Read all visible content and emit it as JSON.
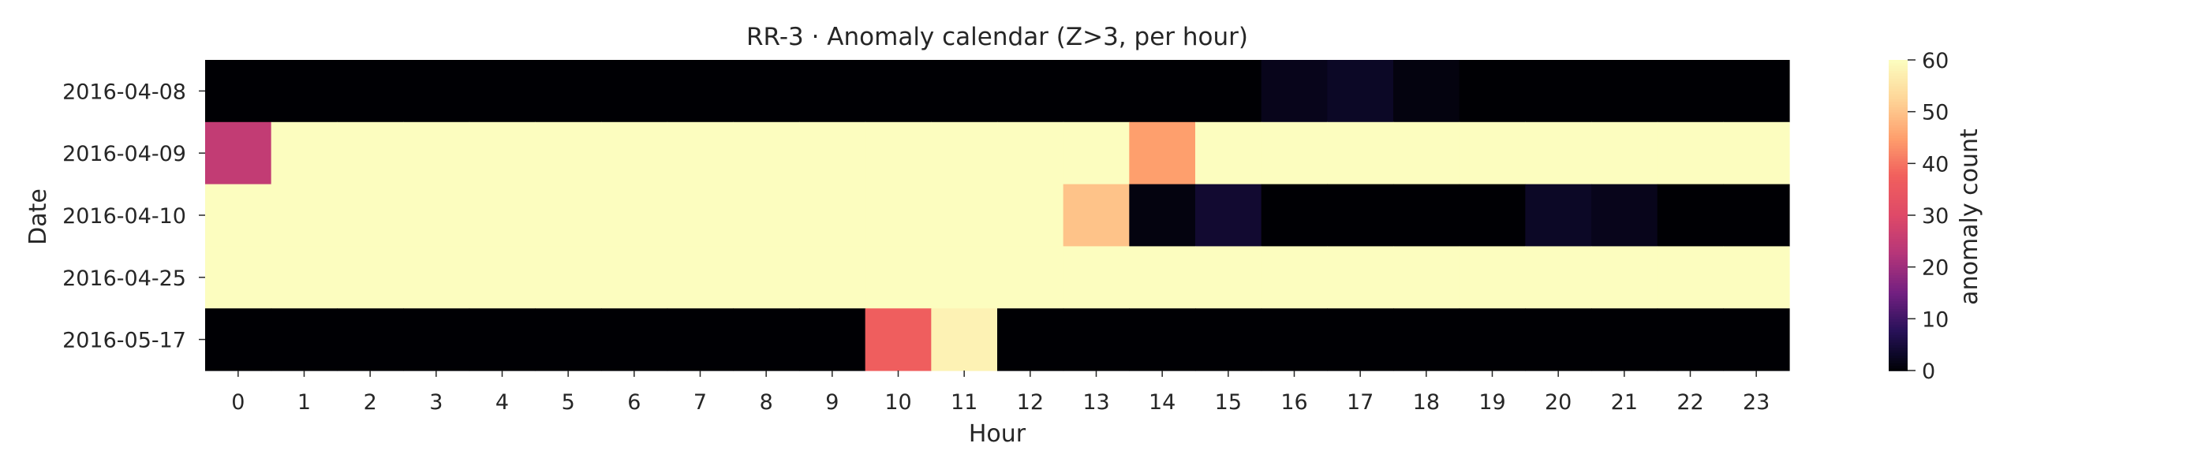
{
  "chart_data": {
    "type": "heatmap",
    "title": "RR-3 · Anomaly calendar (Z>3, per hour)",
    "xlabel": "Hour",
    "ylabel": "Date",
    "x_categories": [
      "0",
      "1",
      "2",
      "3",
      "4",
      "5",
      "6",
      "7",
      "8",
      "9",
      "10",
      "11",
      "12",
      "13",
      "14",
      "15",
      "16",
      "17",
      "18",
      "19",
      "20",
      "21",
      "22",
      "23"
    ],
    "y_categories": [
      "2016-04-08",
      "2016-04-09",
      "2016-04-10",
      "2016-04-25",
      "2016-05-17"
    ],
    "values": [
      [
        0,
        0,
        0,
        0,
        0,
        0,
        0,
        0,
        0,
        0,
        0,
        0,
        0,
        0,
        0,
        0,
        2,
        3,
        1,
        0,
        0,
        0,
        0,
        0
      ],
      [
        25,
        60,
        60,
        60,
        60,
        60,
        60,
        60,
        60,
        60,
        60,
        60,
        60,
        60,
        45,
        60,
        60,
        60,
        60,
        60,
        60,
        60,
        60,
        60
      ],
      [
        60,
        60,
        60,
        60,
        60,
        60,
        60,
        60,
        60,
        60,
        60,
        60,
        60,
        50,
        1,
        4,
        0,
        0,
        0,
        0,
        3,
        2,
        0,
        0
      ],
      [
        60,
        60,
        60,
        60,
        60,
        60,
        60,
        60,
        60,
        60,
        60,
        60,
        60,
        60,
        60,
        60,
        60,
        60,
        60,
        60,
        60,
        60,
        60,
        60
      ],
      [
        0,
        0,
        0,
        0,
        0,
        0,
        0,
        0,
        0,
        0,
        37,
        58,
        0,
        0,
        0,
        0,
        0,
        0,
        0,
        0,
        0,
        0,
        0,
        0
      ]
    ],
    "colorbar": {
      "label": "anomaly count",
      "colormap": "magma",
      "range": [
        0,
        60
      ],
      "ticks": [
        "0",
        "10",
        "20",
        "30",
        "40",
        "50",
        "60"
      ]
    },
    "grid": false
  }
}
